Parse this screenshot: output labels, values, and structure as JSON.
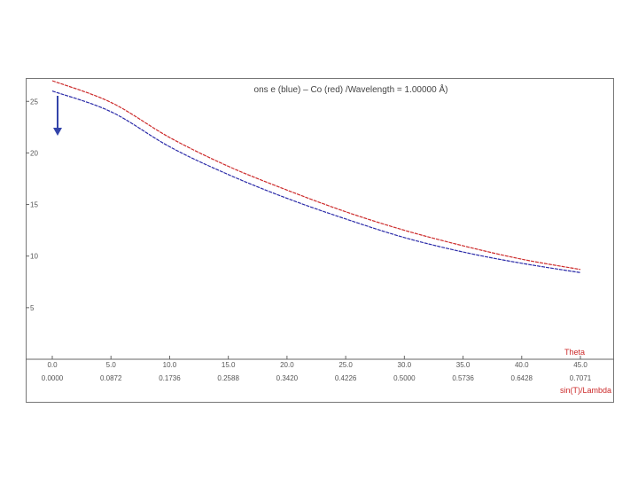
{
  "chart_data": {
    "type": "line",
    "title": "ons    e (blue) – Co (red)   /Wavelength = 1.00000 Å)",
    "xlabel_primary": "Theta",
    "xlabel_secondary": "sin(T)/Lambda",
    "x_ticks": [
      "0.0",
      "5.0",
      "10.0",
      "15.0",
      "20.0",
      "25.0",
      "30.0",
      "35.0",
      "40.0",
      "45.0"
    ],
    "x_ticks_secondary": [
      "0.0000",
      "0.0872",
      "0.1736",
      "0.2588",
      "0.3420",
      "0.4226",
      "0.5000",
      "0.5736",
      "0.6428",
      "0.7071"
    ],
    "y_ticks": [
      "5",
      "10",
      "15",
      "20",
      "25"
    ],
    "xlim": [
      0,
      45
    ],
    "ylim": [
      0,
      27
    ],
    "grid": false,
    "series": [
      {
        "color": "#cc2a2a",
        "x": [
          0,
          5,
          10,
          15,
          20,
          25,
          30,
          35,
          40,
          45
        ],
        "y": [
          27.0,
          24.9,
          21.5,
          18.7,
          16.4,
          14.3,
          12.5,
          11.0,
          9.7,
          8.7
        ]
      },
      {
        "color": "#2a2aa8",
        "x": [
          0,
          5,
          10,
          15,
          20,
          25,
          30,
          35,
          40,
          45
        ],
        "y": [
          26.0,
          24.0,
          20.6,
          17.9,
          15.6,
          13.6,
          11.8,
          10.4,
          9.3,
          8.4
        ]
      }
    ],
    "annotation_color": "#3344aa"
  }
}
